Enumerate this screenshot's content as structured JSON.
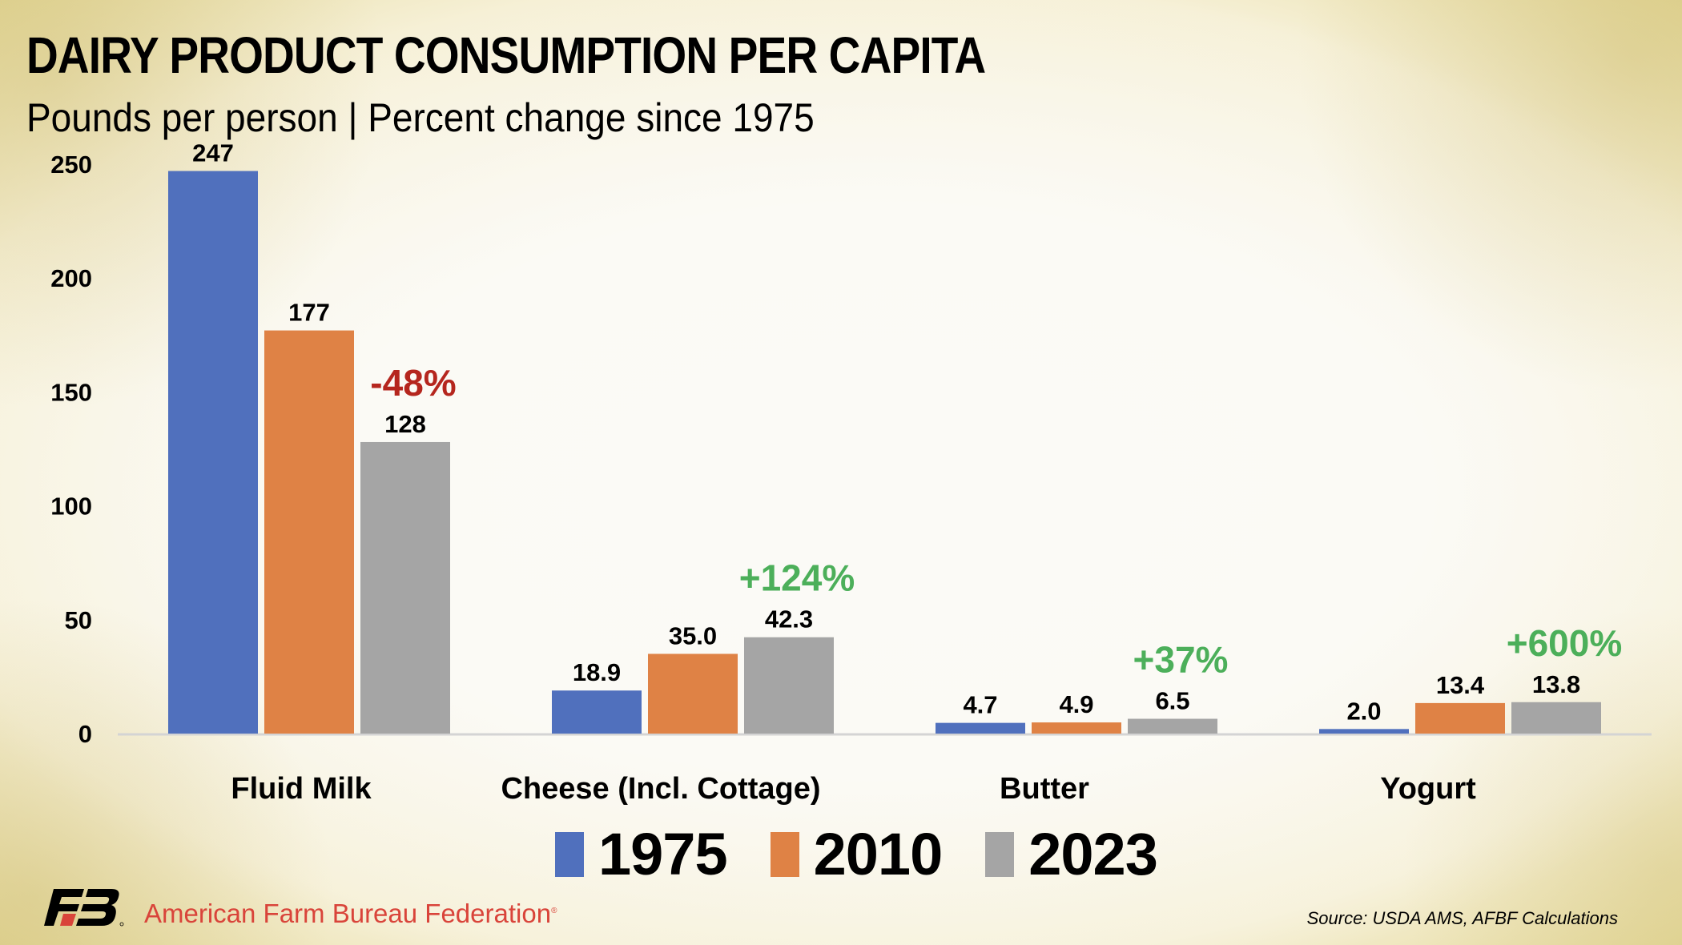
{
  "header": {
    "title": "DAIRY PRODUCT CONSUMPTION PER CAPITA",
    "subtitle": "Pounds per person | Percent change since 1975"
  },
  "chart_data": {
    "type": "bar",
    "title": "DAIRY PRODUCT CONSUMPTION PER CAPITA",
    "subtitle": "Pounds per person | Percent change since 1975",
    "xlabel": "",
    "ylabel": "Pounds per person",
    "ylim": [
      0,
      250
    ],
    "yticks": [
      0,
      50,
      100,
      150,
      200,
      250
    ],
    "grid": false,
    "legend_position": "bottom",
    "categories": [
      "Fluid Milk",
      "Cheese (Incl. Cottage)",
      "Butter",
      "Yogurt"
    ],
    "series": [
      {
        "name": "1975",
        "color": "#5070bd",
        "values": [
          247,
          18.9,
          4.7,
          2.0
        ],
        "labels": [
          "247",
          "18.9",
          "4.7",
          "2.0"
        ]
      },
      {
        "name": "2010",
        "color": "#df8245",
        "values": [
          177,
          35.0,
          4.9,
          13.4
        ],
        "labels": [
          "177",
          "35.0",
          "4.9",
          "13.4"
        ]
      },
      {
        "name": "2023",
        "color": "#a5a5a5",
        "values": [
          128,
          42.3,
          6.5,
          13.8
        ],
        "labels": [
          "128",
          "42.3",
          "6.5",
          "13.8"
        ]
      }
    ],
    "annotations": [
      {
        "category": "Fluid Milk",
        "text": "-48%",
        "color": "#b5261e"
      },
      {
        "category": "Cheese (Incl. Cottage)",
        "text": "+124%",
        "color": "#4caf5a"
      },
      {
        "category": "Butter",
        "text": "+37%",
        "color": "#4caf5a"
      },
      {
        "category": "Yogurt",
        "text": "+600%",
        "color": "#4caf5a"
      }
    ]
  },
  "legend": {
    "items": [
      {
        "label": "1975",
        "color": "#5070bd"
      },
      {
        "label": "2010",
        "color": "#df8245"
      },
      {
        "label": "2023",
        "color": "#a5a5a5"
      }
    ]
  },
  "footer": {
    "organization": "American Farm Bureau Federation",
    "registered_mark": "®",
    "logo_icon": "afbf-logo-icon",
    "source": "Source: USDA AMS, AFBF Calculations"
  }
}
